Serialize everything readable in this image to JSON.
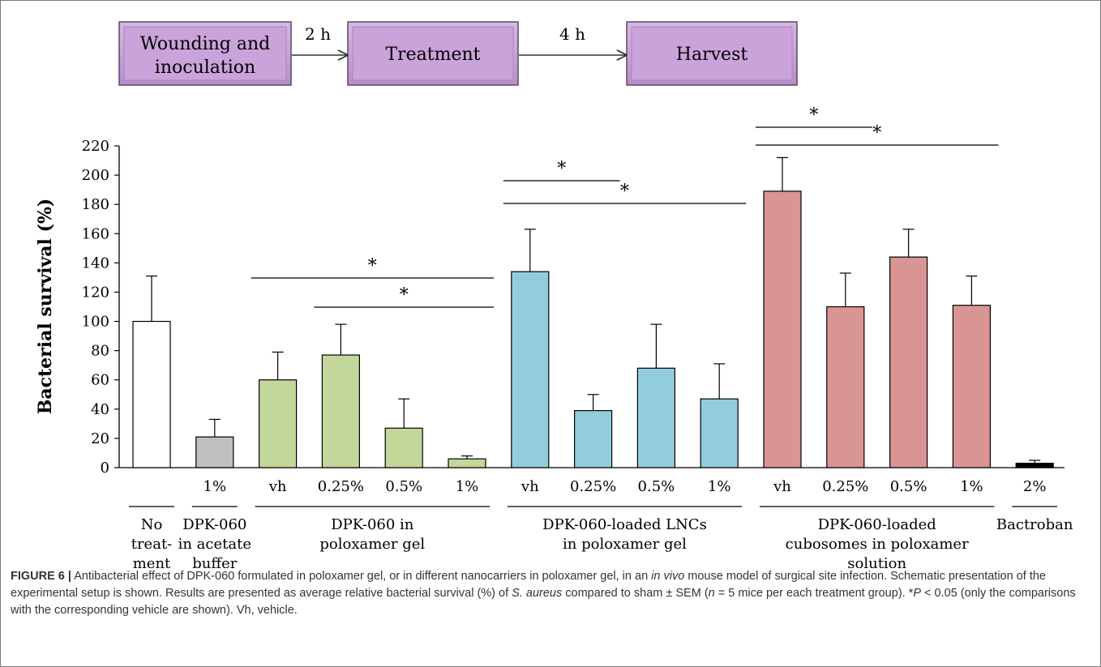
{
  "flow": {
    "boxes": [
      {
        "line1": "Wounding and",
        "line2": "inoculation"
      },
      {
        "line1": "Treatment",
        "line2": ""
      },
      {
        "line1": "Harvest",
        "line2": ""
      }
    ],
    "arrows": [
      "2 h",
      "4 h"
    ],
    "box_color": "#c9a3d9"
  },
  "chart_data": {
    "type": "bar",
    "ylabel": "Bacterial survival  (%)",
    "ylim": [
      0,
      220
    ],
    "yticks": [
      0,
      20,
      40,
      60,
      80,
      100,
      120,
      140,
      160,
      180,
      200,
      220
    ],
    "bars": [
      {
        "label": "",
        "value": 100,
        "sem": 31,
        "group": 0
      },
      {
        "label": "1%",
        "value": 21,
        "sem": 12,
        "group": 1
      },
      {
        "label": "vh",
        "value": 60,
        "sem": 19,
        "group": 2
      },
      {
        "label": "0.25%",
        "value": 77,
        "sem": 21,
        "group": 2
      },
      {
        "label": "0.5%",
        "value": 27,
        "sem": 20,
        "group": 2
      },
      {
        "label": "1%",
        "value": 6,
        "sem": 2,
        "group": 2
      },
      {
        "label": "vh",
        "value": 134,
        "sem": 29,
        "group": 3
      },
      {
        "label": "0.25%",
        "value": 39,
        "sem": 11,
        "group": 3
      },
      {
        "label": "0.5%",
        "value": 68,
        "sem": 30,
        "group": 3
      },
      {
        "label": "1%",
        "value": 47,
        "sem": 24,
        "group": 3
      },
      {
        "label": "vh",
        "value": 189,
        "sem": 23,
        "group": 4
      },
      {
        "label": "0.25%",
        "value": 110,
        "sem": 23,
        "group": 4
      },
      {
        "label": "0.5%",
        "value": 144,
        "sem": 19,
        "group": 4
      },
      {
        "label": "1%",
        "value": 111,
        "sem": 20,
        "group": 4
      },
      {
        "label": "2%",
        "value": 3,
        "sem": 2,
        "group": 5
      }
    ],
    "groups": [
      {
        "lines": [
          "No",
          "treat-",
          "ment"
        ],
        "color": "#ffffff"
      },
      {
        "lines": [
          "DPK-060",
          "in acetate",
          "buffer"
        ],
        "color": "#bfbfbf"
      },
      {
        "lines": [
          "DPK-060 in",
          "poloxamer gel"
        ],
        "color": "#c4d79b"
      },
      {
        "lines": [
          "DPK-060-loaded LNCs",
          "in poloxamer  gel"
        ],
        "color": "#92cddc"
      },
      {
        "lines": [
          "DPK-060-loaded",
          "cubosomes in poloxamer",
          "solution"
        ],
        "color": "#d99594"
      },
      {
        "lines": [
          "Bactroban"
        ],
        "color": "#000000"
      }
    ],
    "significance": [
      {
        "from": 2,
        "to": 5,
        "label": "*"
      },
      {
        "from": 3,
        "to": 5,
        "label": "*"
      },
      {
        "from": 6,
        "to": 7,
        "label": "*"
      },
      {
        "from": 6,
        "to": 9,
        "label": "*"
      },
      {
        "from": 10,
        "to": 11,
        "label": "*"
      },
      {
        "from": 10,
        "to": 13,
        "label": "*"
      }
    ]
  },
  "caption": {
    "label": "FIGURE 6 |",
    "parts": [
      " Antibacterial effect of DPK-060 formulated in poloxamer gel, or in different nanocarriers in poloxamer gel, in an ",
      "in vivo",
      " mouse model of surgical site infection. Schematic presentation of the experimental setup is shown. Results are presented as average relative bacterial survival (%) of ",
      "S. aureus",
      " compared to sham ± SEM (",
      "n",
      " = 5 mice per each treatment group). *",
      "P",
      " < 0.05 (only the comparisons with the corresponding vehicle are shown). Vh, vehicle."
    ]
  }
}
